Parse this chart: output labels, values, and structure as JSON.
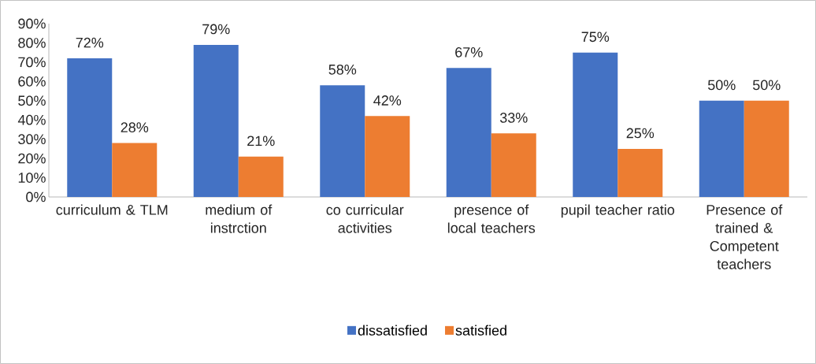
{
  "chart_data": {
    "type": "bar",
    "categories": [
      "curriculum & TLM",
      "medium of instrction",
      "co curricular activities",
      "presence of local teachers",
      "pupil teacher ratio",
      "Presence of trained & Competent teachers"
    ],
    "series": [
      {
        "name": "dissatisfied",
        "color": "#4472c4",
        "values": [
          72,
          79,
          58,
          67,
          75,
          50
        ],
        "value_labels": [
          "72%",
          "79%",
          "58%",
          "67%",
          "75%",
          "50%"
        ]
      },
      {
        "name": "satisfied",
        "color": "#ed7d31",
        "values": [
          28,
          21,
          42,
          33,
          25,
          50
        ],
        "value_labels": [
          "28%",
          "21%",
          "42%",
          "33%",
          "25%",
          "50%"
        ]
      }
    ],
    "ylim": [
      0,
      90
    ],
    "yticks": [
      {
        "value": 0,
        "label": "0%"
      },
      {
        "value": 10,
        "label": "10%"
      },
      {
        "value": 20,
        "label": "20%"
      },
      {
        "value": 30,
        "label": "30%"
      },
      {
        "value": 40,
        "label": "40%"
      },
      {
        "value": 50,
        "label": "50%"
      },
      {
        "value": 60,
        "label": "60%"
      },
      {
        "value": 70,
        "label": "70%"
      },
      {
        "value": 80,
        "label": "80%"
      },
      {
        "value": 90,
        "label": "90%"
      }
    ],
    "grid": false,
    "legend": "bottom"
  }
}
